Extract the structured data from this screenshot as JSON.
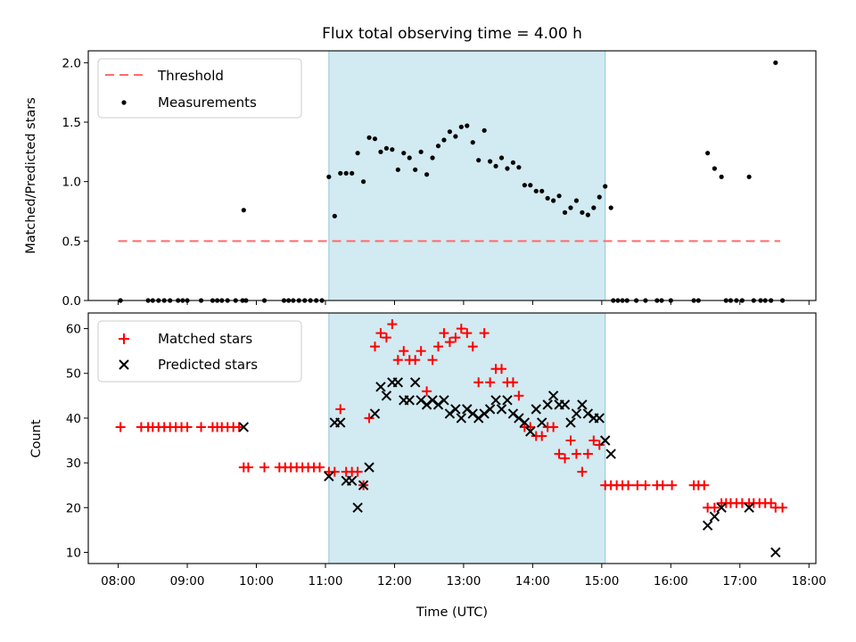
{
  "chart_data": [
    {
      "type": "scatter",
      "title": "Flux total observing time = 4.00 h",
      "xlabel": "",
      "ylabel": "Matched/Predicted stars",
      "xlim": [
        "07:34",
        "18:06"
      ],
      "ylim": [
        0,
        2.1
      ],
      "yticks": [
        "0.0",
        "0.5",
        "1.0",
        "1.5",
        "2.0"
      ],
      "shaded_span": [
        "11:03",
        "15:03"
      ],
      "legend_position": "upper left",
      "threshold": {
        "name": "Threshold",
        "value": 0.5,
        "x_range": [
          "08:00",
          "17:35"
        ],
        "color": "#ff6b6b"
      },
      "series": [
        {
          "name": "Measurements",
          "color": "#000000",
          "marker": "dot",
          "points": [
            [
              "08:02",
              0
            ],
            [
              "08:26",
              0
            ],
            [
              "08:30",
              0
            ],
            [
              "08:35",
              0
            ],
            [
              "08:40",
              0
            ],
            [
              "08:45",
              0
            ],
            [
              "08:52",
              0
            ],
            [
              "08:56",
              0
            ],
            [
              "09:00",
              0
            ],
            [
              "09:12",
              0
            ],
            [
              "09:22",
              0
            ],
            [
              "09:26",
              0
            ],
            [
              "09:30",
              0
            ],
            [
              "09:35",
              0
            ],
            [
              "09:42",
              0
            ],
            [
              "09:48",
              0
            ],
            [
              "09:49",
              0.76
            ],
            [
              "09:51",
              0
            ],
            [
              "10:07",
              0
            ],
            [
              "10:24",
              0
            ],
            [
              "10:28",
              0
            ],
            [
              "10:32",
              0
            ],
            [
              "10:37",
              0
            ],
            [
              "10:42",
              0
            ],
            [
              "10:47",
              0
            ],
            [
              "10:52",
              0
            ],
            [
              "10:57",
              0
            ],
            [
              "11:03",
              1.04
            ],
            [
              "11:08",
              0.71
            ],
            [
              "11:13",
              1.07
            ],
            [
              "11:18",
              1.07
            ],
            [
              "11:23",
              1.07
            ],
            [
              "11:28",
              1.24
            ],
            [
              "11:33",
              1.0
            ],
            [
              "11:38",
              1.37
            ],
            [
              "11:43",
              1.36
            ],
            [
              "11:48",
              1.25
            ],
            [
              "11:53",
              1.28
            ],
            [
              "11:58",
              1.27
            ],
            [
              "12:03",
              1.1
            ],
            [
              "12:08",
              1.24
            ],
            [
              "12:13",
              1.2
            ],
            [
              "12:18",
              1.1
            ],
            [
              "12:23",
              1.25
            ],
            [
              "12:28",
              1.06
            ],
            [
              "12:33",
              1.2
            ],
            [
              "12:38",
              1.3
            ],
            [
              "12:43",
              1.35
            ],
            [
              "12:48",
              1.42
            ],
            [
              "12:53",
              1.38
            ],
            [
              "12:58",
              1.46
            ],
            [
              "13:03",
              1.47
            ],
            [
              "13:08",
              1.33
            ],
            [
              "13:13",
              1.18
            ],
            [
              "13:18",
              1.43
            ],
            [
              "13:23",
              1.17
            ],
            [
              "13:28",
              1.13
            ],
            [
              "13:33",
              1.2
            ],
            [
              "13:38",
              1.11
            ],
            [
              "13:43",
              1.16
            ],
            [
              "13:48",
              1.12
            ],
            [
              "13:53",
              0.97
            ],
            [
              "13:58",
              0.97
            ],
            [
              "14:03",
              0.92
            ],
            [
              "14:08",
              0.92
            ],
            [
              "14:13",
              0.86
            ],
            [
              "14:18",
              0.84
            ],
            [
              "14:23",
              0.88
            ],
            [
              "14:28",
              0.74
            ],
            [
              "14:33",
              0.78
            ],
            [
              "14:38",
              0.84
            ],
            [
              "14:43",
              0.74
            ],
            [
              "14:48",
              0.72
            ],
            [
              "14:53",
              0.78
            ],
            [
              "14:58",
              0.87
            ],
            [
              "15:03",
              0.96
            ],
            [
              "15:08",
              0.78
            ],
            [
              "15:10",
              0
            ],
            [
              "15:14",
              0
            ],
            [
              "15:18",
              0
            ],
            [
              "15:22",
              0
            ],
            [
              "15:30",
              0
            ],
            [
              "15:38",
              0
            ],
            [
              "15:48",
              0
            ],
            [
              "15:52",
              0
            ],
            [
              "16:00",
              0
            ],
            [
              "16:20",
              0
            ],
            [
              "16:24",
              0
            ],
            [
              "16:32",
              1.24
            ],
            [
              "16:38",
              1.11
            ],
            [
              "16:44",
              1.04
            ],
            [
              "16:48",
              0
            ],
            [
              "16:52",
              0
            ],
            [
              "16:57",
              0
            ],
            [
              "17:02",
              0
            ],
            [
              "17:08",
              1.04
            ],
            [
              "17:12",
              0
            ],
            [
              "17:18",
              0
            ],
            [
              "17:22",
              0
            ],
            [
              "17:27",
              0
            ],
            [
              "17:31",
              2.0
            ],
            [
              "17:37",
              0
            ]
          ]
        }
      ]
    },
    {
      "type": "scatter",
      "title": "",
      "xlabel": "Time (UTC)",
      "ylabel": "Count",
      "xlim": [
        "07:34",
        "18:06"
      ],
      "ylim": [
        7.5,
        63.5
      ],
      "xticks": [
        "08:00",
        "09:00",
        "10:00",
        "11:00",
        "12:00",
        "13:00",
        "14:00",
        "15:00",
        "16:00",
        "17:00",
        "18:00"
      ],
      "yticks": [
        "10",
        "20",
        "30",
        "40",
        "50",
        "60"
      ],
      "shaded_span": [
        "11:03",
        "15:03"
      ],
      "legend_position": "upper left",
      "series": [
        {
          "name": "Matched stars",
          "color": "#ff0000",
          "marker": "plus",
          "points": [
            [
              "08:02",
              38
            ],
            [
              "08:20",
              38
            ],
            [
              "08:26",
              38
            ],
            [
              "08:30",
              38
            ],
            [
              "08:35",
              38
            ],
            [
              "08:40",
              38
            ],
            [
              "08:45",
              38
            ],
            [
              "08:50",
              38
            ],
            [
              "08:55",
              38
            ],
            [
              "09:00",
              38
            ],
            [
              "09:12",
              38
            ],
            [
              "09:22",
              38
            ],
            [
              "09:26",
              38
            ],
            [
              "09:30",
              38
            ],
            [
              "09:35",
              38
            ],
            [
              "09:40",
              38
            ],
            [
              "09:45",
              38
            ],
            [
              "09:49",
              29
            ],
            [
              "09:53",
              29
            ],
            [
              "10:07",
              29
            ],
            [
              "10:20",
              29
            ],
            [
              "10:25",
              29
            ],
            [
              "10:30",
              29
            ],
            [
              "10:35",
              29
            ],
            [
              "10:40",
              29
            ],
            [
              "10:45",
              29
            ],
            [
              "10:50",
              29
            ],
            [
              "10:55",
              29
            ],
            [
              "11:03",
              28
            ],
            [
              "11:08",
              28
            ],
            [
              "11:13",
              42
            ],
            [
              "11:18",
              28
            ],
            [
              "11:23",
              28
            ],
            [
              "11:28",
              28
            ],
            [
              "11:33",
              25
            ],
            [
              "11:38",
              40
            ],
            [
              "11:43",
              56
            ],
            [
              "11:48",
              59
            ],
            [
              "11:53",
              58
            ],
            [
              "11:58",
              61
            ],
            [
              "12:03",
              53
            ],
            [
              "12:08",
              55
            ],
            [
              "12:13",
              53
            ],
            [
              "12:18",
              53
            ],
            [
              "12:23",
              55
            ],
            [
              "12:28",
              46
            ],
            [
              "12:33",
              53
            ],
            [
              "12:38",
              56
            ],
            [
              "12:43",
              59
            ],
            [
              "12:48",
              57
            ],
            [
              "12:53",
              58
            ],
            [
              "12:58",
              60
            ],
            [
              "13:03",
              59
            ],
            [
              "13:08",
              56
            ],
            [
              "13:13",
              48
            ],
            [
              "13:18",
              59
            ],
            [
              "13:23",
              48
            ],
            [
              "13:28",
              51
            ],
            [
              "13:33",
              51
            ],
            [
              "13:38",
              48
            ],
            [
              "13:43",
              48
            ],
            [
              "13:48",
              45
            ],
            [
              "13:53",
              38
            ],
            [
              "13:58",
              38
            ],
            [
              "14:03",
              36
            ],
            [
              "14:08",
              36
            ],
            [
              "14:13",
              38
            ],
            [
              "14:18",
              38
            ],
            [
              "14:23",
              32
            ],
            [
              "14:28",
              31
            ],
            [
              "14:33",
              35
            ],
            [
              "14:38",
              32
            ],
            [
              "14:43",
              28
            ],
            [
              "14:48",
              32
            ],
            [
              "14:53",
              35
            ],
            [
              "14:58",
              34
            ],
            [
              "15:03",
              25
            ],
            [
              "15:08",
              25
            ],
            [
              "15:13",
              25
            ],
            [
              "15:18",
              25
            ],
            [
              "15:23",
              25
            ],
            [
              "15:31",
              25
            ],
            [
              "15:38",
              25
            ],
            [
              "15:48",
              25
            ],
            [
              "15:53",
              25
            ],
            [
              "16:01",
              25
            ],
            [
              "16:20",
              25
            ],
            [
              "16:24",
              25
            ],
            [
              "16:29",
              25
            ],
            [
              "16:32",
              20
            ],
            [
              "16:38",
              20
            ],
            [
              "16:44",
              21
            ],
            [
              "16:48",
              21
            ],
            [
              "16:52",
              21
            ],
            [
              "16:57",
              21
            ],
            [
              "17:02",
              21
            ],
            [
              "17:08",
              21
            ],
            [
              "17:12",
              21
            ],
            [
              "17:17",
              21
            ],
            [
              "17:22",
              21
            ],
            [
              "17:27",
              21
            ],
            [
              "17:31",
              20
            ],
            [
              "17:37",
              20
            ]
          ]
        },
        {
          "name": "Predicted stars",
          "color": "#000000",
          "marker": "x",
          "points": [
            [
              "09:49",
              38
            ],
            [
              "11:03",
              27
            ],
            [
              "11:08",
              39
            ],
            [
              "11:13",
              39
            ],
            [
              "11:18",
              26
            ],
            [
              "11:23",
              26
            ],
            [
              "11:28",
              20
            ],
            [
              "11:33",
              25
            ],
            [
              "11:38",
              29
            ],
            [
              "11:43",
              41
            ],
            [
              "11:48",
              47
            ],
            [
              "11:53",
              45
            ],
            [
              "11:58",
              48
            ],
            [
              "12:03",
              48
            ],
            [
              "12:08",
              44
            ],
            [
              "12:13",
              44
            ],
            [
              "12:18",
              48
            ],
            [
              "12:23",
              44
            ],
            [
              "12:28",
              43
            ],
            [
              "12:33",
              44
            ],
            [
              "12:38",
              43
            ],
            [
              "12:43",
              44
            ],
            [
              "12:48",
              41
            ],
            [
              "12:53",
              42
            ],
            [
              "12:58",
              40
            ],
            [
              "13:03",
              42
            ],
            [
              "13:08",
              41
            ],
            [
              "13:13",
              40
            ],
            [
              "13:18",
              41
            ],
            [
              "13:23",
              42
            ],
            [
              "13:28",
              44
            ],
            [
              "13:33",
              42
            ],
            [
              "13:38",
              44
            ],
            [
              "13:43",
              41
            ],
            [
              "13:48",
              40
            ],
            [
              "13:53",
              39
            ],
            [
              "13:58",
              37
            ],
            [
              "14:03",
              42
            ],
            [
              "14:08",
              39
            ],
            [
              "14:13",
              43
            ],
            [
              "14:18",
              45
            ],
            [
              "14:23",
              43
            ],
            [
              "14:28",
              43
            ],
            [
              "14:33",
              39
            ],
            [
              "14:38",
              41
            ],
            [
              "14:43",
              43
            ],
            [
              "14:48",
              41
            ],
            [
              "14:53",
              40
            ],
            [
              "14:58",
              40
            ],
            [
              "15:03",
              35
            ],
            [
              "15:08",
              32
            ],
            [
              "16:32",
              16
            ],
            [
              "16:38",
              18
            ],
            [
              "16:44",
              20
            ],
            [
              "17:08",
              20
            ],
            [
              "17:31",
              10
            ]
          ]
        }
      ]
    }
  ]
}
